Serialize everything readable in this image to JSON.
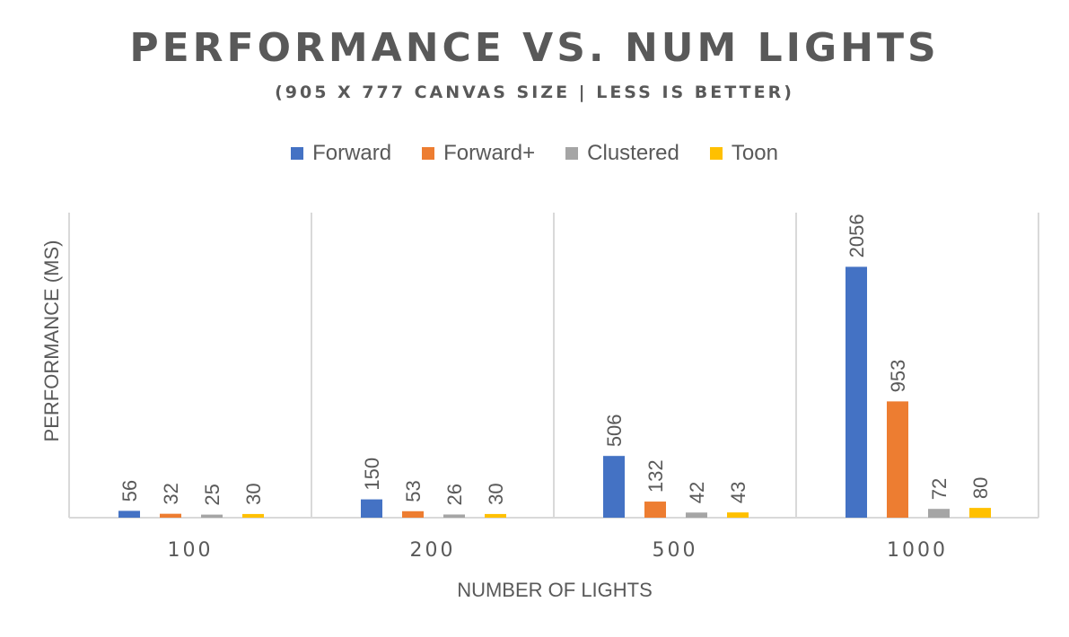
{
  "chart_data": {
    "type": "bar",
    "title": "PERFORMANCE VS. NUM LIGHTS",
    "subtitle": "(905 X 777 CANVAS SIZE | LESS IS BETTER)",
    "xlabel": "NUMBER OF LIGHTS",
    "ylabel": "PERFORMANCE (MS)",
    "categories": [
      "100",
      "200",
      "500",
      "1000"
    ],
    "series": [
      {
        "name": "Forward",
        "color": "#4472C4",
        "values": [
          56,
          150,
          506,
          2056
        ]
      },
      {
        "name": "Forward+",
        "color": "#ED7D31",
        "values": [
          32,
          53,
          132,
          953
        ]
      },
      {
        "name": "Clustered",
        "color": "#A5A5A5",
        "values": [
          25,
          26,
          42,
          72
        ]
      },
      {
        "name": "Toon",
        "color": "#FFC000",
        "values": [
          30,
          30,
          43,
          80
        ]
      }
    ],
    "ylim": [
      0,
      2500
    ],
    "grid": "vertical category separators",
    "legend": "top"
  }
}
